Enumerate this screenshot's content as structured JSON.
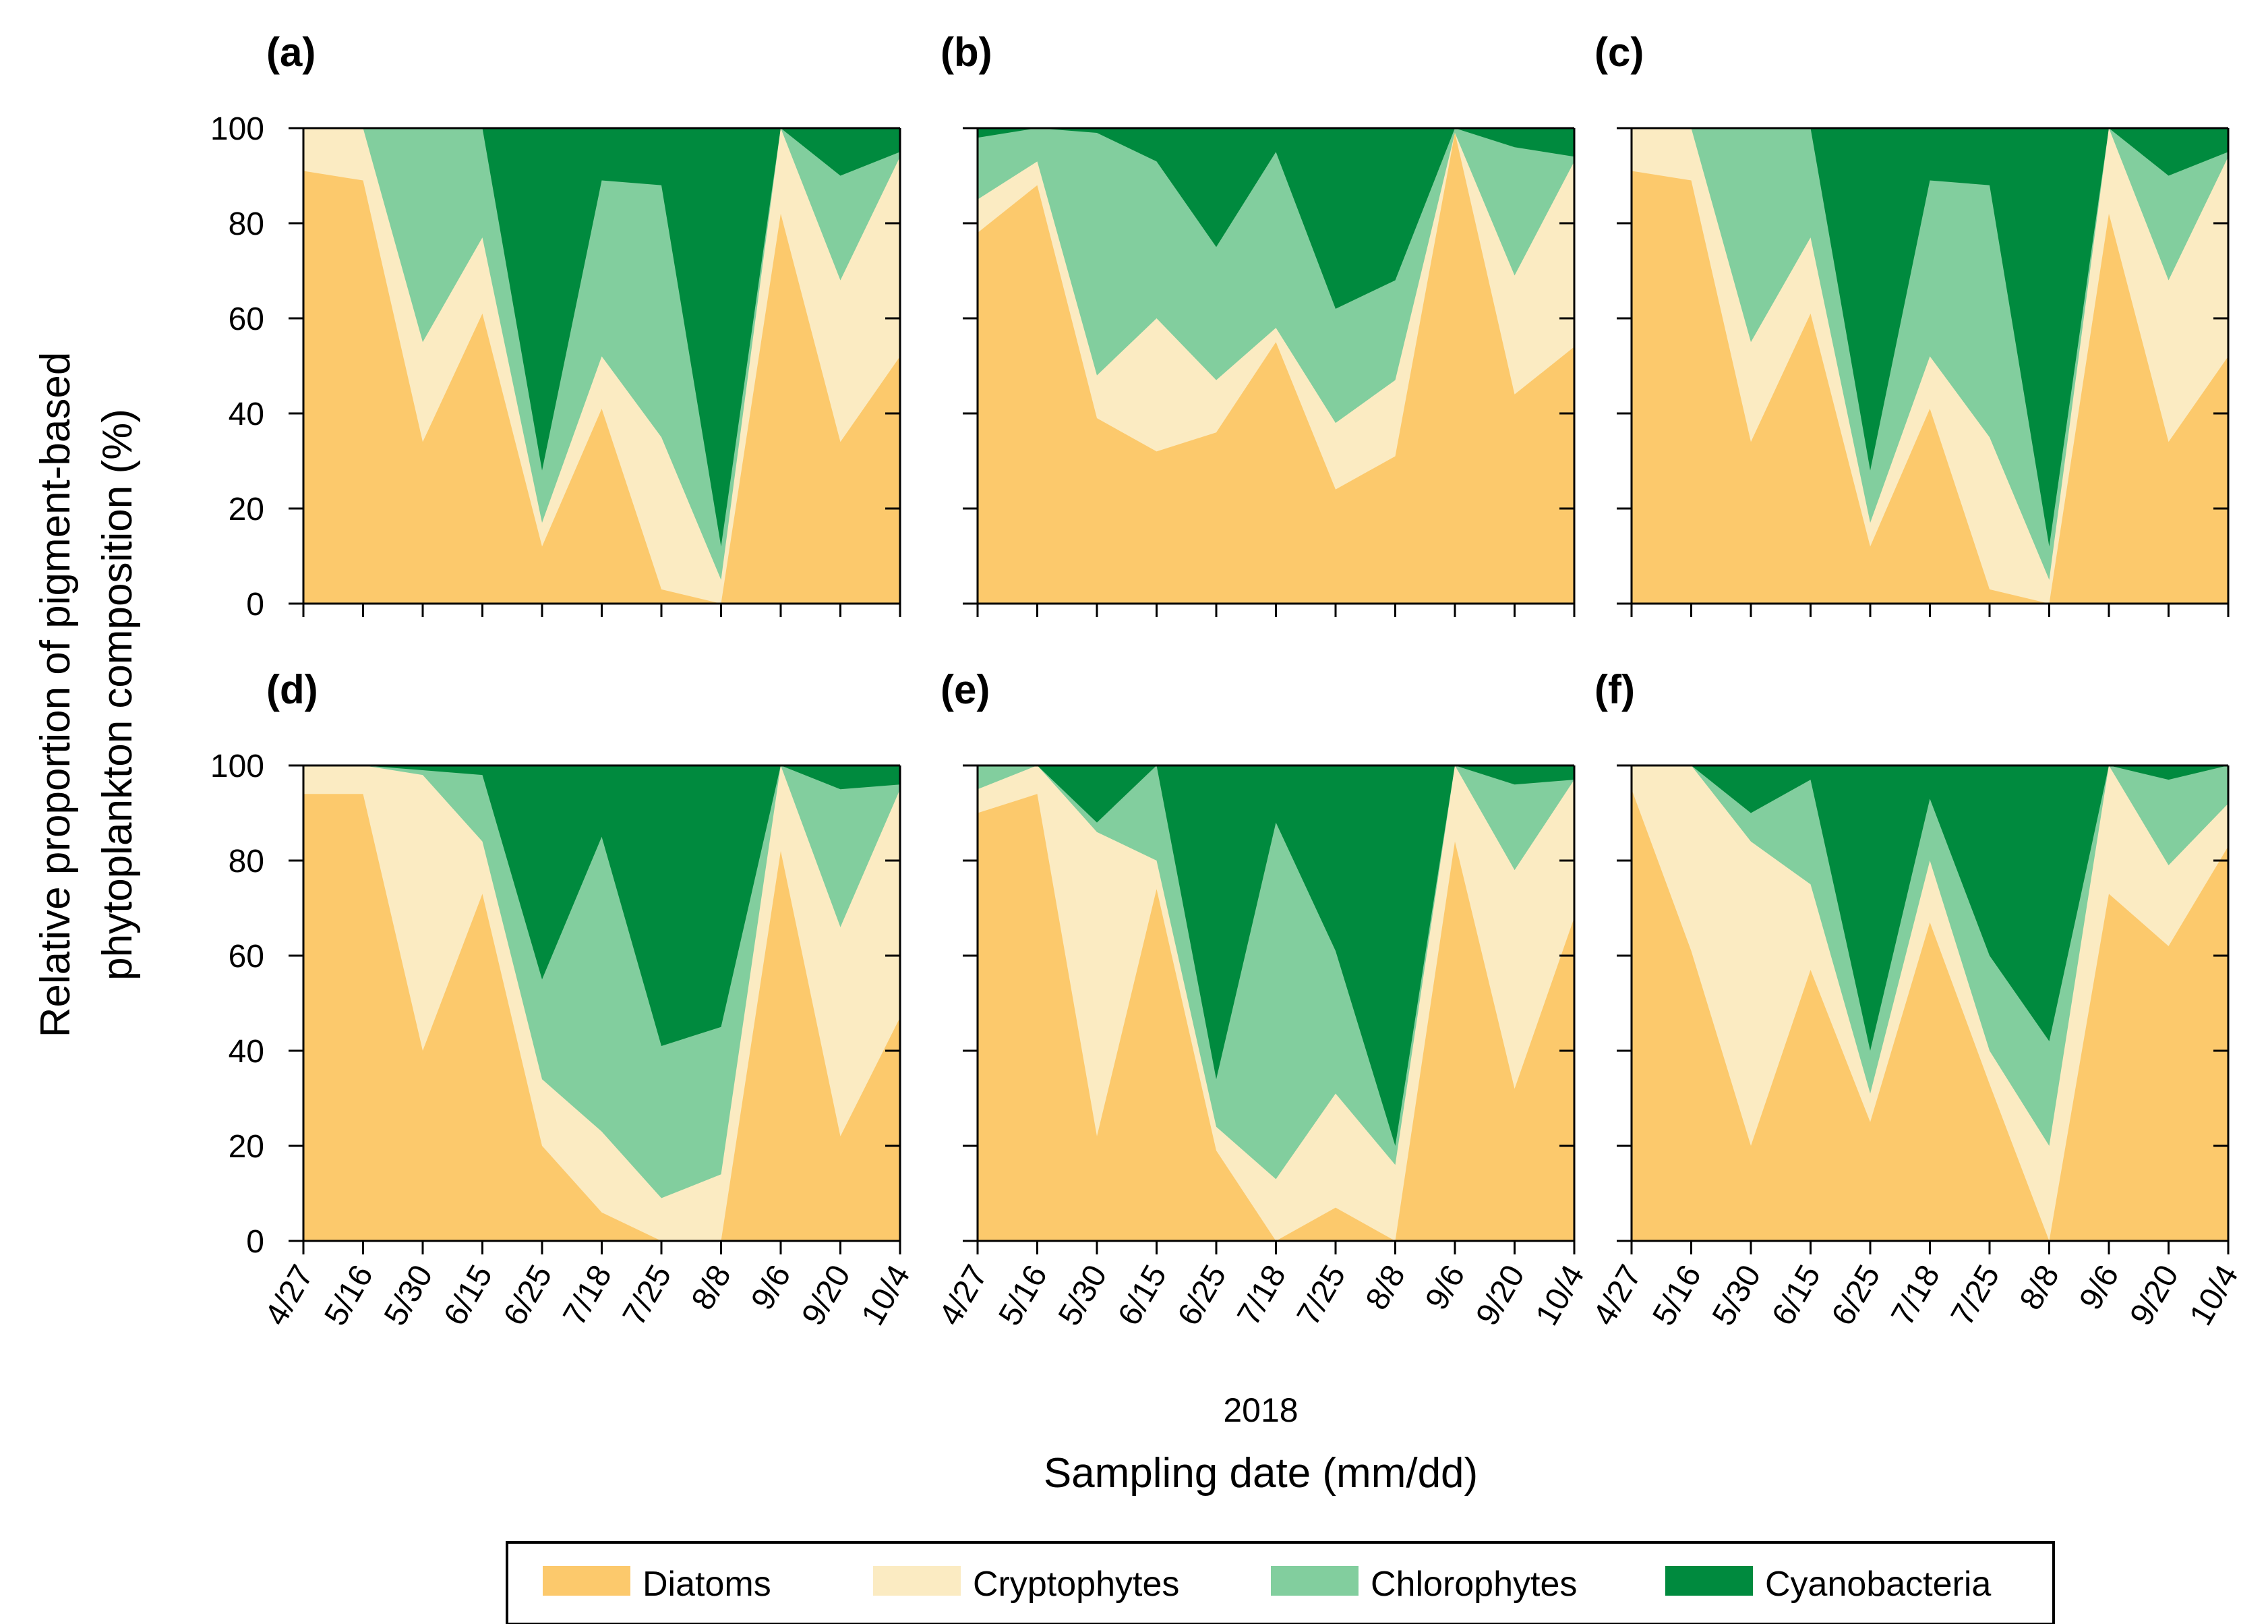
{
  "chart_data": {
    "type": "area",
    "stacked": true,
    "ylabel_line1": "Relative proportion of pigment-based",
    "ylabel_line2": "phytoplankton composition (%)",
    "xlabel": "Sampling date (mm/dd)",
    "x_year": "2018",
    "ylim": [
      0,
      100
    ],
    "yticks": [
      "0",
      "20",
      "40",
      "60",
      "80",
      "100"
    ],
    "categories": [
      "4/27",
      "5/16",
      "5/30",
      "6/15",
      "6/25",
      "7/18",
      "7/25",
      "8/8",
      "9/6",
      "9/20",
      "10/4"
    ],
    "series_names": [
      "Diatoms",
      "Cryptophytes",
      "Chlorophytes",
      "Cyanobacteria"
    ],
    "colors": {
      "Diatoms": "#FCC96C",
      "Cryptophytes": "#FBEBC2",
      "Chlorophytes": "#82CE9E",
      "Cyanobacteria": "#008A3E"
    },
    "legend": [
      {
        "name": "Diatoms",
        "label": "Diatoms"
      },
      {
        "name": "Cryptophytes",
        "label": "Cryptophytes"
      },
      {
        "name": "Chlorophytes",
        "label": "Chlorophytes"
      },
      {
        "name": "Cyanobacteria",
        "label": "Cyanobacteria"
      }
    ],
    "panels": [
      {
        "label": "(a)",
        "cumulative": {
          "Diatoms": [
            91,
            89,
            34,
            61,
            12,
            41,
            3,
            0,
            82,
            34,
            52
          ],
          "Cryptophytes": [
            100,
            100,
            55,
            77,
            17,
            52,
            35,
            5,
            100,
            68,
            94
          ],
          "Chlorophytes": [
            100,
            100,
            100,
            100,
            28,
            89,
            88,
            12,
            100,
            90,
            95
          ]
        }
      },
      {
        "label": "(b)",
        "cumulative": {
          "Diatoms": [
            78,
            88,
            39,
            32,
            36,
            55,
            24,
            31,
            99,
            44,
            54
          ],
          "Cryptophytes": [
            85,
            93,
            48,
            60,
            47,
            58,
            38,
            47,
            99,
            69,
            93
          ],
          "Chlorophytes": [
            98,
            100,
            99,
            93,
            75,
            95,
            62,
            68,
            100,
            96,
            94
          ]
        }
      },
      {
        "label": "(c)",
        "cumulative": {
          "Diatoms": [
            91,
            89,
            34,
            61,
            12,
            41,
            3,
            0,
            82,
            34,
            52
          ],
          "Cryptophytes": [
            100,
            100,
            55,
            77,
            17,
            52,
            35,
            5,
            100,
            68,
            94
          ],
          "Chlorophytes": [
            100,
            100,
            100,
            100,
            28,
            89,
            88,
            12,
            100,
            90,
            95
          ]
        }
      },
      {
        "label": "(d)",
        "cumulative": {
          "Diatoms": [
            94,
            94,
            40,
            73,
            20,
            6,
            0,
            0,
            82,
            22,
            47
          ],
          "Cryptophytes": [
            100,
            100,
            98,
            84,
            34,
            23,
            9,
            14,
            100,
            66,
            95
          ],
          "Chlorophytes": [
            100,
            100,
            99,
            98,
            55,
            85,
            41,
            45,
            100,
            95,
            96
          ]
        }
      },
      {
        "label": "(e)",
        "cumulative": {
          "Diatoms": [
            90,
            94,
            22,
            74,
            19,
            0,
            7,
            0,
            84,
            32,
            68
          ],
          "Cryptophytes": [
            95,
            100,
            86,
            80,
            24,
            13,
            31,
            16,
            100,
            78,
            97
          ],
          "Chlorophytes": [
            100,
            100,
            88,
            100,
            34,
            88,
            61,
            20,
            100,
            96,
            97
          ]
        }
      },
      {
        "label": "(f)",
        "cumulative": {
          "Diatoms": [
            95,
            61,
            20,
            57,
            25,
            67,
            33,
            0,
            73,
            62,
            83
          ],
          "Cryptophytes": [
            100,
            100,
            84,
            75,
            31,
            80,
            40,
            20,
            100,
            79,
            92
          ],
          "Chlorophytes": [
            100,
            100,
            90,
            97,
            40,
            93,
            60,
            42,
            100,
            97,
            100
          ]
        }
      }
    ]
  }
}
